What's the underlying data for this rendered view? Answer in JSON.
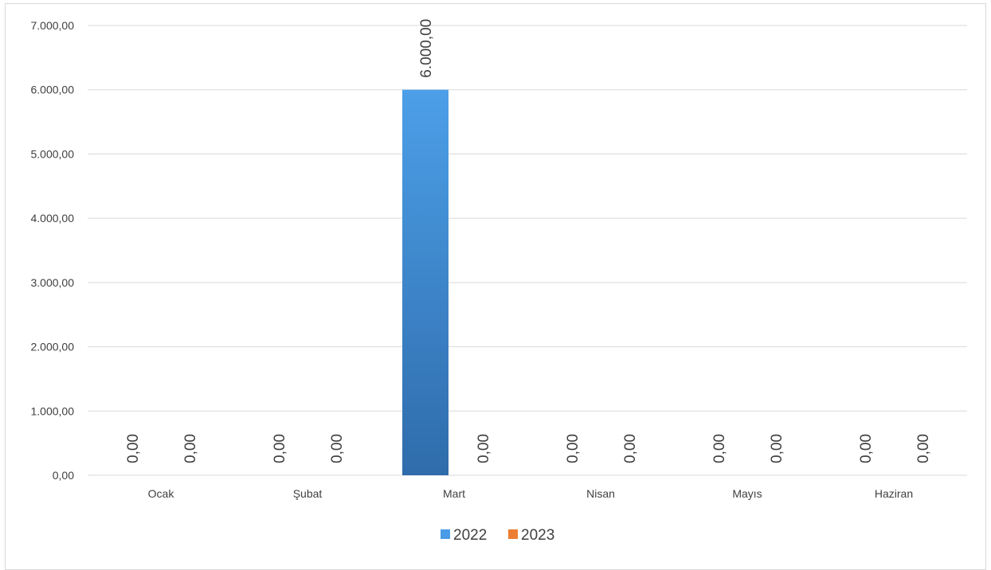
{
  "chart_data": {
    "type": "bar",
    "title": "",
    "xlabel": "",
    "ylabel": "",
    "categories": [
      "Ocak",
      "Şubat",
      "Mart",
      "Nisan",
      "Mayıs",
      "Haziran"
    ],
    "series": [
      {
        "name": "2022",
        "color": "#4a9ce6",
        "values": [
          0,
          0,
          6000,
          0,
          0,
          0
        ],
        "labels": [
          "0,00",
          "0,00",
          "6.000,00",
          "0,00",
          "0,00",
          "0,00"
        ]
      },
      {
        "name": "2023",
        "color": "#ed7d31",
        "values": [
          0,
          0,
          0,
          0,
          0,
          0
        ],
        "labels": [
          "0,00",
          "0,00",
          "0,00",
          "0,00",
          "0,00",
          "0,00"
        ]
      }
    ],
    "ylim": [
      0,
      7000
    ],
    "yticks": [
      0,
      1000,
      2000,
      3000,
      4000,
      5000,
      6000,
      7000
    ],
    "ytick_labels": [
      "0,00",
      "1.000,00",
      "2.000,00",
      "3.000,00",
      "4.000,00",
      "5.000,00",
      "6.000,00",
      "7.000,00"
    ],
    "grid": true,
    "legend_position": "bottom"
  }
}
